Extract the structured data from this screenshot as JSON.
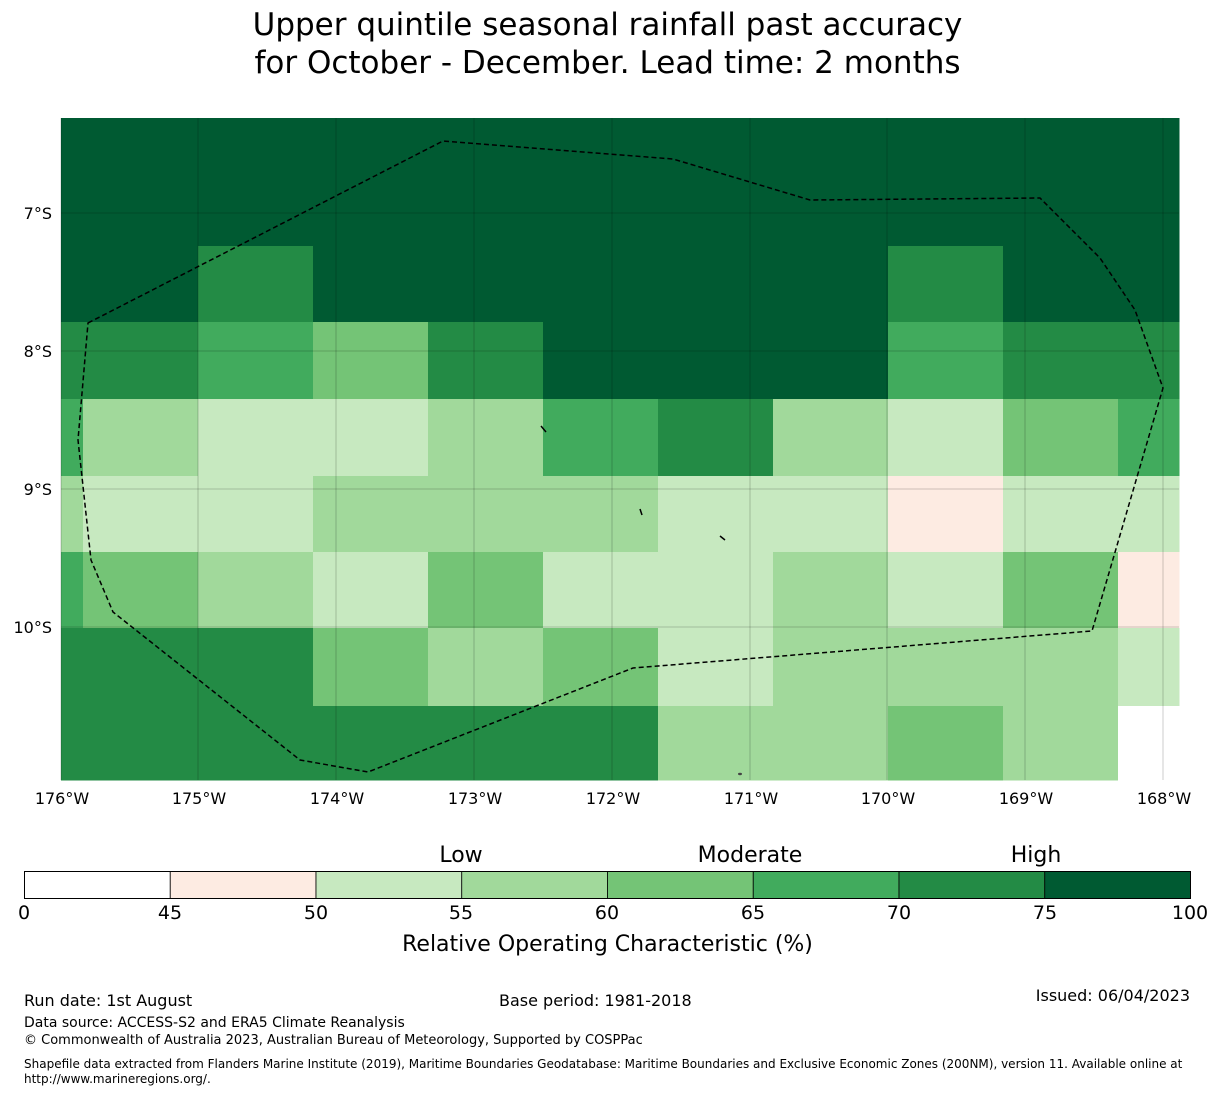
{
  "title": {
    "line1": "Upper quintile seasonal rainfall past accuracy",
    "line2": "for October - December. Lead time: 2 months"
  },
  "map": {
    "lon_ticks": [
      "176°W",
      "175°W",
      "174°W",
      "173°W",
      "172°W",
      "171°W",
      "170°W",
      "169°W",
      "168°W"
    ],
    "lat_ticks": [
      "7°S",
      "8°S",
      "9°S",
      "10°S"
    ],
    "grid": [
      [
        8,
        8,
        8,
        8,
        8,
        8,
        8,
        8,
        8,
        8,
        8
      ],
      [
        8,
        8,
        7,
        8,
        8,
        8,
        8,
        8,
        7,
        8,
        8
      ],
      [
        6,
        6,
        5,
        4,
        6,
        8,
        8,
        8,
        5,
        7,
        7
      ],
      [
        5,
        3,
        2,
        2,
        3,
        5,
        6,
        3,
        2,
        4,
        5
      ],
      [
        3,
        2,
        2,
        3,
        3,
        3,
        2,
        2,
        1,
        2,
        2
      ],
      [
        5,
        4,
        3,
        2,
        4,
        2,
        2,
        3,
        2,
        4,
        1
      ],
      [
        7,
        7,
        7,
        4,
        3,
        4,
        2,
        3,
        3,
        3,
        2
      ],
      [
        7,
        6,
        7,
        6,
        7,
        6,
        3,
        3,
        4,
        3,
        0
      ]
    ],
    "palette": [
      "#ffffff",
      "#fdebe2",
      "#c7e9c0",
      "#a1d99b",
      "#74c476",
      "#41ab5d",
      "#238b45",
      "#238b45",
      "#005a32"
    ]
  },
  "colorbar": {
    "ticks": [
      "0",
      "45",
      "50",
      "55",
      "60",
      "65",
      "70",
      "75",
      "100"
    ],
    "colors": [
      "#ffffff",
      "#fdebe2",
      "#c7e9c0",
      "#a1d99b",
      "#74c476",
      "#41ab5d",
      "#238b45",
      "#005a32"
    ],
    "categories": [
      "Low",
      "Moderate",
      "High"
    ],
    "label": "Relative Operating Characteristic (%)"
  },
  "footer": {
    "run_date": "Run date: 1st August",
    "base_period": "Base period: 1981-2018",
    "issued": "Issued: 06/04/2023",
    "data_source": "Data source: ACCESS-S2 and ERA5 Climate Reanalysis",
    "copyright": "© Commonwealth of Australia 2023, Australian Bureau of Meteorology, Supported by COSPPac",
    "shapefile": "Shapefile data extracted from Flanders Marine Institute (2019), Maritime Boundaries Geodatabase: Maritime Boundaries and Exclusive Economic Zones (200NM), version 11. Available online at http://www.marineregions.org/."
  }
}
